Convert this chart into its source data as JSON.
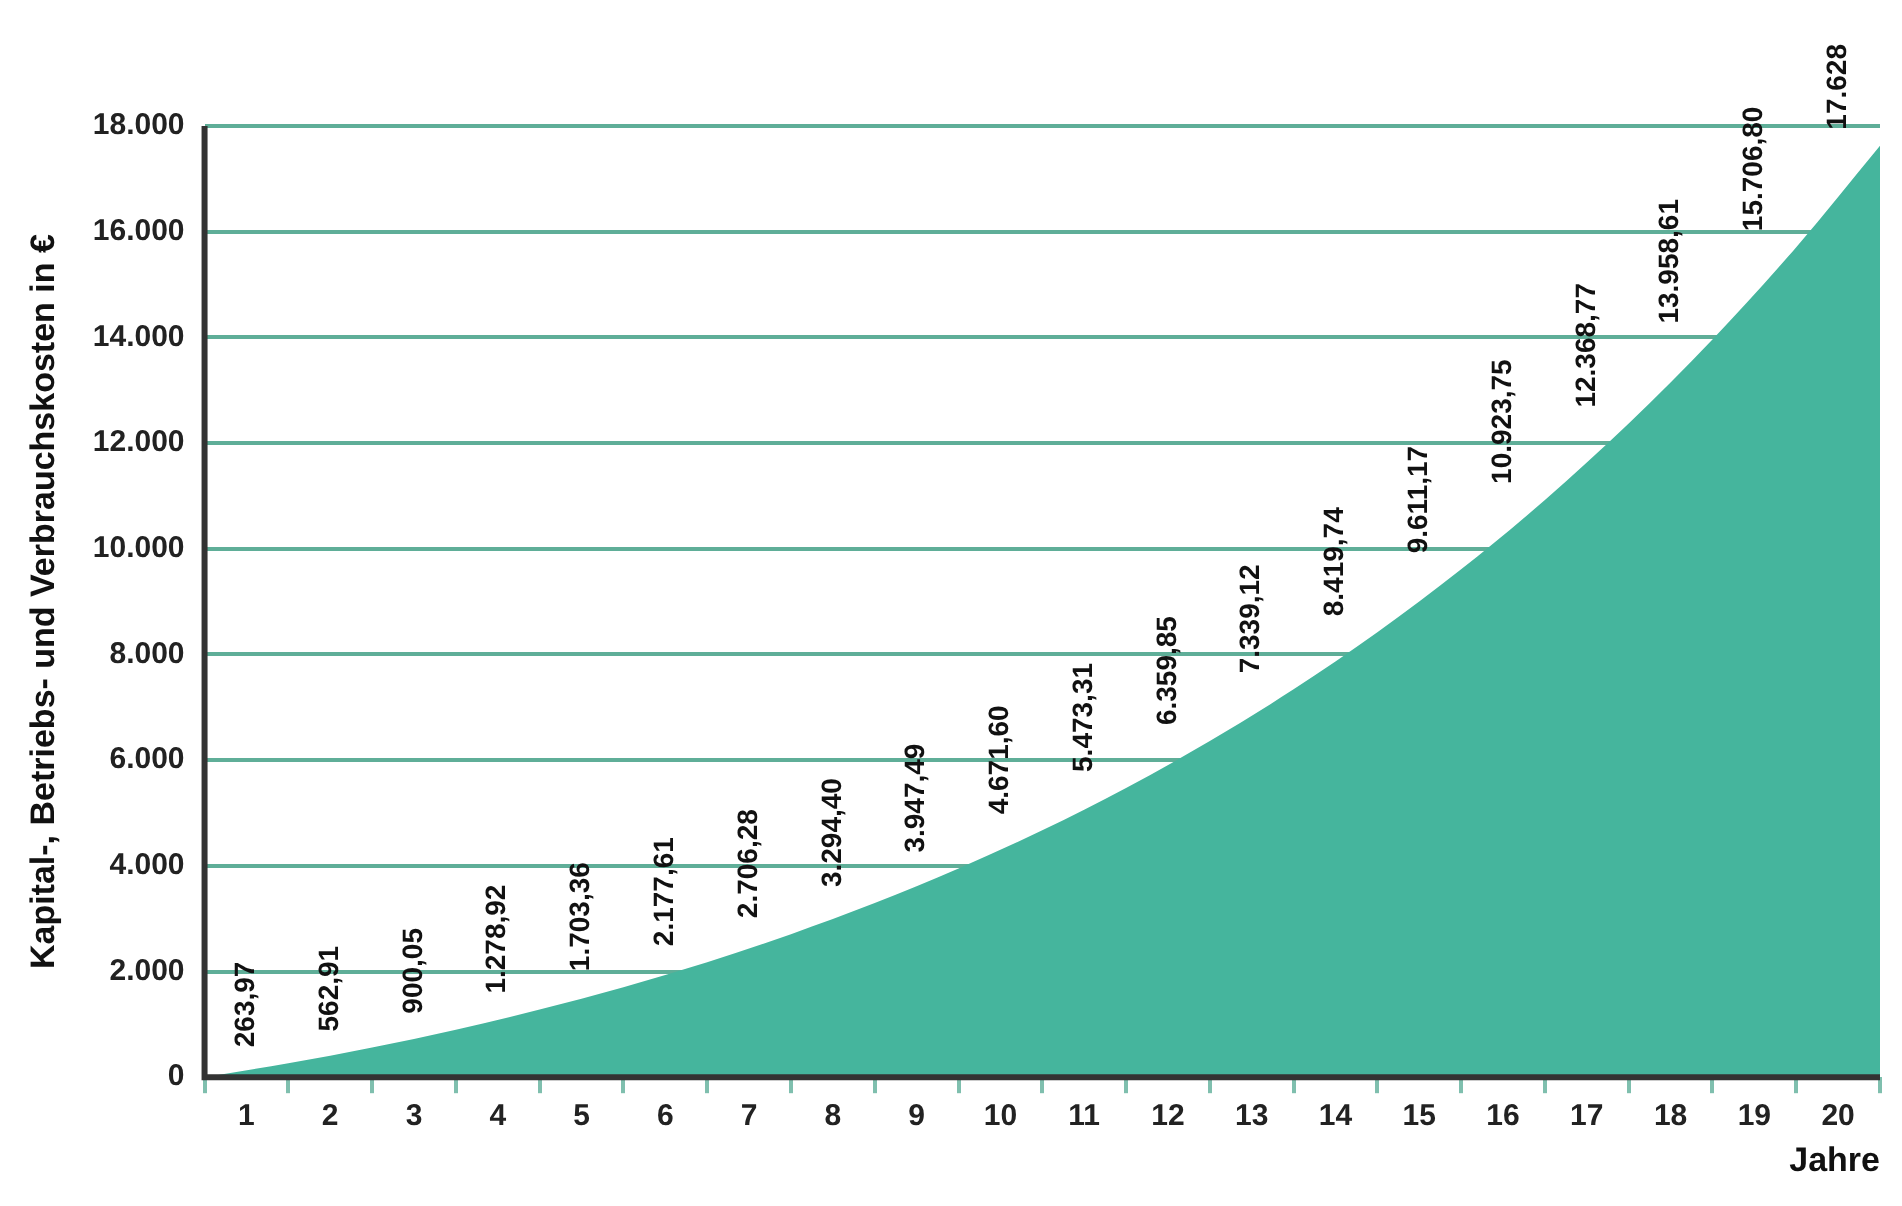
{
  "chart_data": {
    "type": "area",
    "xlabel": "Jahre",
    "ylabel": "Kapital-, Betriebs- und Verbrauchskosten in €",
    "x": [
      0,
      1,
      2,
      3,
      4,
      5,
      6,
      7,
      8,
      9,
      10,
      11,
      12,
      13,
      14,
      15,
      16,
      17,
      18,
      19,
      20
    ],
    "series": [
      {
        "color": "#45b59d",
        "values": [
          0,
          263.97,
          562.91,
          900.05,
          1278.92,
          1703.36,
          2177.61,
          2706.28,
          3294.4,
          3947.49,
          4671.6,
          5473.31,
          6359.85,
          7339.12,
          8419.74,
          9611.17,
          10923.75,
          12368.77,
          13958.61,
          15706.8,
          17628
        ],
        "value_labels": [
          null,
          "263,97",
          "562,91",
          "900,05",
          "1.278,92",
          "1.703,36",
          "2.177,61",
          "2.706,28",
          "3.294,40",
          "3.947,49",
          "4.671,60",
          "5.473,31",
          "6.359,85",
          "7.339,12",
          "8.419,74",
          "9.611,17",
          "10.923,75",
          "12.368,77",
          "13.958,61",
          "15.706,80",
          "17.628"
        ]
      }
    ],
    "xlim": [
      0,
      20
    ],
    "xticks": [
      {
        "value": 0,
        "label": null
      },
      {
        "value": 0.5,
        "label": "1"
      },
      {
        "value": 1,
        "label": null
      },
      {
        "value": 1.5,
        "label": "2"
      },
      {
        "value": 2,
        "label": null
      },
      {
        "value": 2.5,
        "label": "3"
      },
      {
        "value": 3,
        "label": null
      },
      {
        "value": 3.5,
        "label": "4"
      },
      {
        "value": 4,
        "label": null
      },
      {
        "value": 4.5,
        "label": "5"
      },
      {
        "value": 5,
        "label": null
      },
      {
        "value": 5.5,
        "label": "6"
      },
      {
        "value": 6,
        "label": null
      },
      {
        "value": 6.5,
        "label": "7"
      },
      {
        "value": 7,
        "label": null
      },
      {
        "value": 7.5,
        "label": "8"
      },
      {
        "value": 8,
        "label": null
      },
      {
        "value": 8.5,
        "label": "9"
      },
      {
        "value": 9,
        "label": null
      },
      {
        "value": 9.5,
        "label": "10"
      },
      {
        "value": 10,
        "label": null
      },
      {
        "value": 10.5,
        "label": "11"
      },
      {
        "value": 11,
        "label": null
      },
      {
        "value": 11.5,
        "label": "12"
      },
      {
        "value": 12,
        "label": null
      },
      {
        "value": 12.5,
        "label": "13"
      },
      {
        "value": 13,
        "label": null
      },
      {
        "value": 13.5,
        "label": "14"
      },
      {
        "value": 14,
        "label": null
      },
      {
        "value": 14.5,
        "label": "15"
      },
      {
        "value": 15,
        "label": null
      },
      {
        "value": 15.5,
        "label": "16"
      },
      {
        "value": 16,
        "label": null
      },
      {
        "value": 16.5,
        "label": "17"
      },
      {
        "value": 17,
        "label": null
      },
      {
        "value": 17.5,
        "label": "18"
      },
      {
        "value": 18,
        "label": null
      },
      {
        "value": 18.5,
        "label": "19"
      },
      {
        "value": 19,
        "label": null
      },
      {
        "value": 19.5,
        "label": "20"
      },
      {
        "value": 20,
        "label": null
      }
    ],
    "ylim": [
      0,
      18000
    ],
    "yticks": [
      0,
      {
        "value": 2000,
        "label": "2.000"
      },
      {
        "value": 4000,
        "label": "4.000"
      },
      {
        "value": 6000,
        "label": "6.000"
      },
      {
        "value": 8000,
        "label": "8.000"
      },
      {
        "value": 10000,
        "label": "10.000"
      },
      {
        "value": 12000,
        "label": "12.000"
      },
      {
        "value": 14000,
        "label": "14.000"
      },
      {
        "value": 16000,
        "label": "16.000"
      },
      {
        "value": 18000,
        "label": "18.000"
      }
    ],
    "grid": "y",
    "marker": "none",
    "legend": false
  }
}
